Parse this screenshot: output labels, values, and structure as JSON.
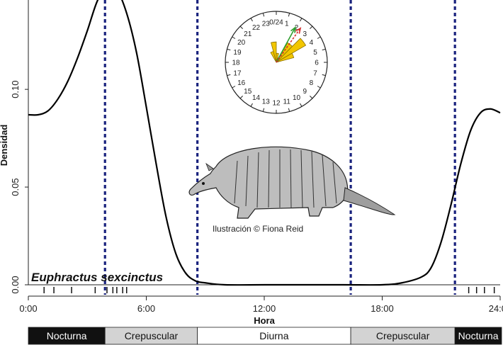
{
  "chart_data": {
    "type": "line",
    "xlabel": "Hora",
    "ylabel": "Densidad",
    "xlim": [
      0,
      24
    ],
    "ylim": [
      0,
      0.145
    ],
    "x_ticks": [
      {
        "value": 0,
        "label": "0:00"
      },
      {
        "value": 6,
        "label": "6:00"
      },
      {
        "value": 12,
        "label": "12:00"
      },
      {
        "value": 18,
        "label": "18:00"
      },
      {
        "value": 24,
        "label": "24:00"
      }
    ],
    "y_ticks": [
      {
        "value": 0,
        "label": "0.00"
      },
      {
        "value": 0.05,
        "label": "0.05"
      },
      {
        "value": 0.1,
        "label": "0.10"
      }
    ],
    "series": [
      {
        "x": [
          0,
          0.5,
          1,
          1.5,
          2,
          2.5,
          3,
          3.5,
          4,
          4.5,
          5,
          5.5,
          6,
          6.5,
          7,
          7.5,
          8,
          8.5,
          9,
          10,
          12,
          14,
          16,
          18,
          19,
          20,
          20.5,
          21,
          21.5,
          22,
          22.5,
          23,
          23.5,
          24
        ],
        "y": [
          0.087,
          0.087,
          0.089,
          0.095,
          0.104,
          0.116,
          0.13,
          0.145,
          0.153,
          0.151,
          0.139,
          0.119,
          0.091,
          0.062,
          0.035,
          0.016,
          0.006,
          0.002,
          0.001,
          0.0,
          0.0,
          0.0,
          0.0,
          0.0,
          0.001,
          0.004,
          0.009,
          0.022,
          0.041,
          0.062,
          0.079,
          0.088,
          0.09,
          0.088
        ]
      }
    ],
    "vertical_lines": [
      3.9,
      8.6,
      16.4,
      21.7
    ],
    "rug": [
      0.8,
      1.3,
      2.2,
      3.4,
      4.0,
      4.3,
      4.5,
      4.8,
      5.0,
      22.4,
      22.8,
      23.2,
      23.7
    ],
    "line_color": "#000000",
    "vline_color": "#1a237e"
  },
  "annotations": {
    "species": "Euphractus sexcinctus",
    "credit": "Ilustración © Fiona Reid"
  },
  "clock": {
    "labels": [
      "0/24",
      "1",
      "2",
      "3",
      "4",
      "5",
      "6",
      "7",
      "8",
      "9",
      "10",
      "11",
      "12",
      "13",
      "14",
      "15",
      "16",
      "17",
      "18",
      "19",
      "20",
      "21",
      "22",
      "23"
    ],
    "rose_hours": [
      22,
      23,
      0,
      1,
      2,
      3,
      4
    ],
    "rose_lengths": [
      0.25,
      0.45,
      0.2,
      0.1,
      0.5,
      0.75,
      0.4
    ],
    "rose_color": "#f2c600",
    "arrow_colors": [
      "#2e9e2e",
      "#d32f2f"
    ]
  },
  "bands": [
    {
      "label": "Nocturna",
      "start": 0,
      "end": 3.9,
      "bg": "#111111",
      "fg": "#ffffff"
    },
    {
      "label": "Crepuscular",
      "start": 3.9,
      "end": 8.6,
      "bg": "#d3d3d3",
      "fg": "#111111"
    },
    {
      "label": "Diurna",
      "start": 8.6,
      "end": 16.4,
      "bg": "#ffffff",
      "fg": "#111111"
    },
    {
      "label": "Crepuscular",
      "start": 16.4,
      "end": 21.7,
      "bg": "#d3d3d3",
      "fg": "#111111"
    },
    {
      "label": "Nocturna",
      "start": 21.7,
      "end": 24,
      "bg": "#111111",
      "fg": "#ffffff"
    }
  ]
}
